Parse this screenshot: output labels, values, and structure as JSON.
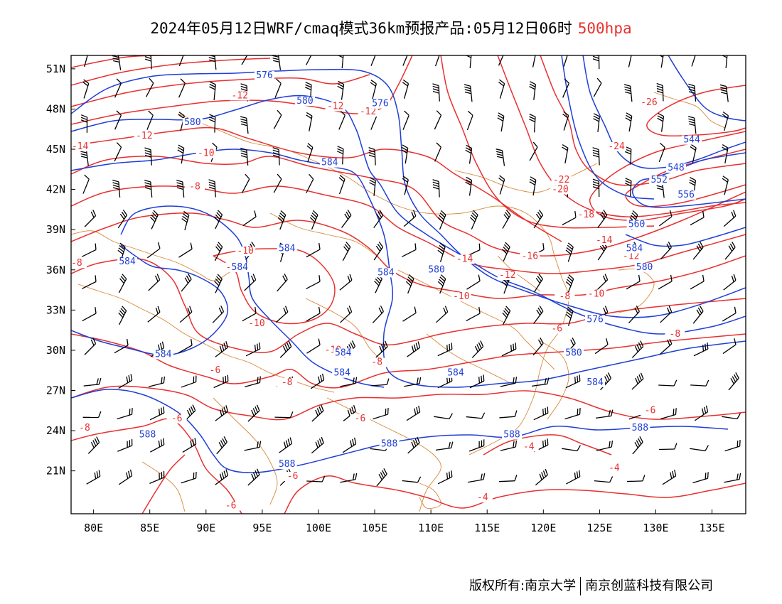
{
  "title": {
    "main": "2024年05月12日WRF/cmaq模式36km预报产品:05月12日06时",
    "level": "500hpa"
  },
  "credit": {
    "owner": "版权所有:南京大学",
    "company": "南京创蓝科技有限公司"
  },
  "colors": {
    "temperature": "#e8302f",
    "height": "#1f3fd6",
    "border": "#d9893a",
    "wind": "#000000"
  },
  "map": {
    "lon_range": [
      78,
      138
    ],
    "lat_range": [
      17.8,
      52
    ],
    "x_ticks": [
      {
        "value": 80,
        "label": "80E"
      },
      {
        "value": 85,
        "label": "85E"
      },
      {
        "value": 90,
        "label": "90E"
      },
      {
        "value": 95,
        "label": "95E"
      },
      {
        "value": 100,
        "label": "100E"
      },
      {
        "value": 105,
        "label": "105E"
      },
      {
        "value": 110,
        "label": "110E"
      },
      {
        "value": 115,
        "label": "115E"
      },
      {
        "value": 120,
        "label": "120E"
      },
      {
        "value": 125,
        "label": "125E"
      },
      {
        "value": 130,
        "label": "130E"
      },
      {
        "value": 135,
        "label": "135E"
      }
    ],
    "y_ticks": [
      {
        "value": 51,
        "label": "51N"
      },
      {
        "value": 48,
        "label": "48N"
      },
      {
        "value": 45,
        "label": "45N"
      },
      {
        "value": 42,
        "label": "42N"
      },
      {
        "value": 39,
        "label": "39N"
      },
      {
        "value": 36,
        "label": "36N"
      },
      {
        "value": 33,
        "label": "33N"
      },
      {
        "value": 30,
        "label": "30N"
      },
      {
        "value": 27,
        "label": "27N"
      },
      {
        "value": 24,
        "label": "24N"
      },
      {
        "value": 21,
        "label": "21N"
      }
    ]
  },
  "contour_labels": {
    "temperature": [
      {
        "text": "-12",
        "lon": 93.0,
        "lat": 48.8
      },
      {
        "text": "-12",
        "lon": 101.5,
        "lat": 48.0
      },
      {
        "text": "-12",
        "lon": 84.5,
        "lat": 45.8
      },
      {
        "text": "-14",
        "lon": 78.8,
        "lat": 45.0
      },
      {
        "text": "-10",
        "lon": 90.0,
        "lat": 44.5
      },
      {
        "text": "-8",
        "lon": 89.0,
        "lat": 42.0
      },
      {
        "text": "-8",
        "lon": 78.5,
        "lat": 36.3
      },
      {
        "text": "-10",
        "lon": 93.5,
        "lat": 37.2
      },
      {
        "text": "-12",
        "lon": 92.5,
        "lat": 36.0
      },
      {
        "text": "-10",
        "lon": 94.5,
        "lat": 31.8
      },
      {
        "text": "-10",
        "lon": 101.3,
        "lat": 29.8
      },
      {
        "text": "-8",
        "lon": 105.2,
        "lat": 28.9
      },
      {
        "text": "-6",
        "lon": 90.8,
        "lat": 28.3
      },
      {
        "text": "-8",
        "lon": 97.2,
        "lat": 27.4
      },
      {
        "text": "-6",
        "lon": 87.4,
        "lat": 24.7
      },
      {
        "text": "-8",
        "lon": 79.2,
        "lat": 24.0
      },
      {
        "text": "-6",
        "lon": 103.7,
        "lat": 24.7
      },
      {
        "text": "-6",
        "lon": 97.7,
        "lat": 20.4
      },
      {
        "text": "-6",
        "lon": 92.2,
        "lat": 18.2
      },
      {
        "text": "-4",
        "lon": 114.6,
        "lat": 18.8
      },
      {
        "text": "-4",
        "lon": 118.7,
        "lat": 22.6
      },
      {
        "text": "-4",
        "lon": 126.3,
        "lat": 21.0
      },
      {
        "text": "-6",
        "lon": 129.5,
        "lat": 25.3
      },
      {
        "text": "-6",
        "lon": 121.2,
        "lat": 31.4
      },
      {
        "text": "-8",
        "lon": 131.7,
        "lat": 31.0
      },
      {
        "text": "-10",
        "lon": 112.7,
        "lat": 33.8
      },
      {
        "text": "-8",
        "lon": 121.9,
        "lat": 33.8
      },
      {
        "text": "-10",
        "lon": 124.7,
        "lat": 34.0
      },
      {
        "text": "-12",
        "lon": 116.8,
        "lat": 35.4
      },
      {
        "text": "-14",
        "lon": 113.0,
        "lat": 36.6
      },
      {
        "text": "-16",
        "lon": 118.8,
        "lat": 36.8
      },
      {
        "text": "-14",
        "lon": 125.4,
        "lat": 38.0
      },
      {
        "text": "-12",
        "lon": 127.8,
        "lat": 36.8
      },
      {
        "text": "-18",
        "lon": 123.8,
        "lat": 39.9
      },
      {
        "text": "-20",
        "lon": 121.5,
        "lat": 41.8
      },
      {
        "text": "-22",
        "lon": 121.6,
        "lat": 42.5
      },
      {
        "text": "-24",
        "lon": 126.5,
        "lat": 45.0
      },
      {
        "text": "-26",
        "lon": 129.4,
        "lat": 48.3
      },
      {
        "text": "-12",
        "lon": 104.4,
        "lat": 47.6
      }
    ],
    "height": [
      {
        "text": "576",
        "lon": 95.2,
        "lat": 50.3
      },
      {
        "text": "580",
        "lon": 98.8,
        "lat": 48.4
      },
      {
        "text": "576",
        "lon": 105.5,
        "lat": 48.2
      },
      {
        "text": "580",
        "lon": 88.8,
        "lat": 46.8
      },
      {
        "text": "584",
        "lon": 101.0,
        "lat": 43.8
      },
      {
        "text": "584",
        "lon": 97.2,
        "lat": 37.4
      },
      {
        "text": "584",
        "lon": 93.0,
        "lat": 36.0
      },
      {
        "text": "584",
        "lon": 83.0,
        "lat": 36.4
      },
      {
        "text": "584",
        "lon": 106.0,
        "lat": 35.6
      },
      {
        "text": "580",
        "lon": 110.5,
        "lat": 35.8
      },
      {
        "text": "584",
        "lon": 86.2,
        "lat": 29.5
      },
      {
        "text": "584",
        "lon": 102.2,
        "lat": 29.6
      },
      {
        "text": "584",
        "lon": 102.1,
        "lat": 28.1
      },
      {
        "text": "584",
        "lon": 112.2,
        "lat": 28.1
      },
      {
        "text": "584",
        "lon": 124.6,
        "lat": 27.4
      },
      {
        "text": "580",
        "lon": 122.7,
        "lat": 29.6
      },
      {
        "text": "588",
        "lon": 84.8,
        "lat": 23.5
      },
      {
        "text": "588",
        "lon": 97.2,
        "lat": 21.3
      },
      {
        "text": "588",
        "lon": 106.3,
        "lat": 22.8
      },
      {
        "text": "588",
        "lon": 117.2,
        "lat": 23.5
      },
      {
        "text": "588",
        "lon": 128.6,
        "lat": 24.0
      },
      {
        "text": "576",
        "lon": 124.6,
        "lat": 32.1
      },
      {
        "text": "584",
        "lon": 128.1,
        "lat": 37.4
      },
      {
        "text": "580",
        "lon": 129.0,
        "lat": 36.0
      },
      {
        "text": "560",
        "lon": 128.3,
        "lat": 39.2
      },
      {
        "text": "552",
        "lon": 130.3,
        "lat": 42.5
      },
      {
        "text": "556",
        "lon": 132.7,
        "lat": 41.4
      },
      {
        "text": "548",
        "lon": 131.8,
        "lat": 43.4
      },
      {
        "text": "544",
        "lon": 133.2,
        "lat": 45.5
      }
    ]
  }
}
